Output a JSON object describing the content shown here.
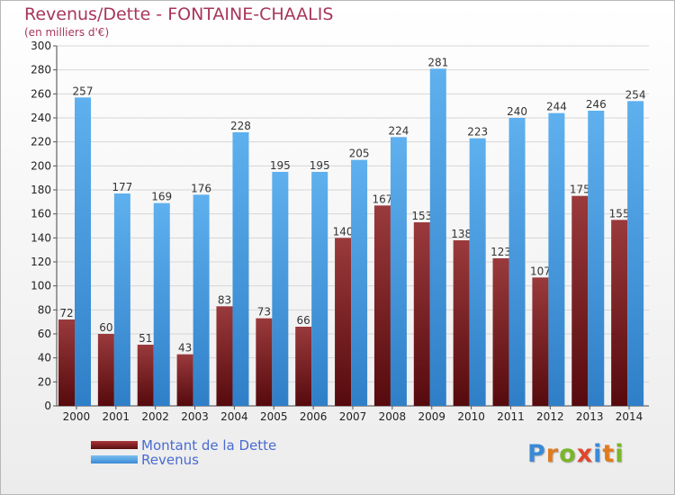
{
  "header": {
    "title": "Revenus/Dette - FONTAINE-CHAALIS",
    "subtitle": "(en milliers d'€)"
  },
  "chart_data": {
    "type": "bar",
    "categories": [
      "2000",
      "2001",
      "2002",
      "2003",
      "2004",
      "2005",
      "2006",
      "2007",
      "2008",
      "2009",
      "2010",
      "2011",
      "2012",
      "2013",
      "2014"
    ],
    "series": [
      {
        "name": "Montant de la Dette",
        "color": "#7b1f22",
        "values": [
          72,
          60,
          51,
          43,
          83,
          73,
          66,
          140,
          167,
          153,
          138,
          123,
          107,
          175,
          155
        ]
      },
      {
        "name": "Revenus",
        "color": "#4a9fe0",
        "values": [
          257,
          177,
          169,
          176,
          228,
          195,
          195,
          205,
          224,
          281,
          223,
          240,
          244,
          246,
          254
        ]
      }
    ],
    "ylim": [
      0,
      300
    ],
    "yticks": [
      0,
      20,
      40,
      60,
      80,
      100,
      120,
      140,
      160,
      180,
      200,
      220,
      240,
      260,
      280,
      300
    ],
    "grid": true,
    "legend_position": "bottom-left"
  },
  "logo": {
    "letters": [
      "P",
      "r",
      "o",
      "x",
      "i",
      "t",
      "i"
    ],
    "colors": [
      "#3a8ad6",
      "#e07b1f",
      "#7ab52a",
      "#e0462c",
      "#3a8ad6",
      "#e07b1f",
      "#7ab52a"
    ]
  }
}
